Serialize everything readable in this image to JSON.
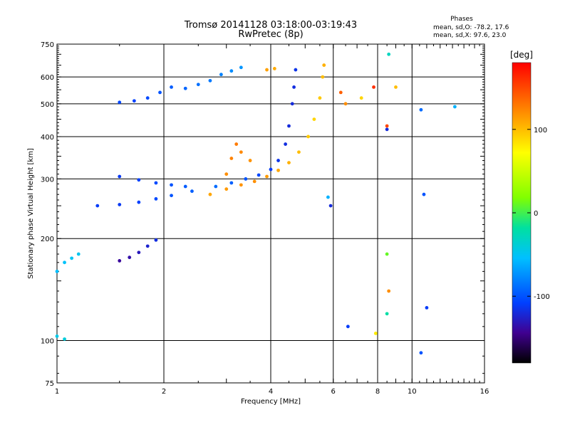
{
  "header": {
    "title_line1": "Tromsø 20141128 03:18:00-03:19:43",
    "title_line2": "RwPretec (8p)"
  },
  "phases_box": {
    "heading": "Phases",
    "line_o": "mean, sd,O: -78.2, 17.6",
    "line_x": "mean, sd,X:  97.6, 23.0"
  },
  "colorbar": {
    "label": "[deg]",
    "ticks": [
      "100",
      "0",
      "-100"
    ],
    "tick_values": [
      100,
      0,
      -100
    ],
    "range": [
      -180,
      180
    ]
  },
  "chart_data": {
    "type": "scatter",
    "xlabel": "Frequency [MHz]",
    "ylabel": "Stationary phase Virtual Height [km]",
    "x_scale": "log",
    "y_scale": "log",
    "xlim": [
      1,
      16
    ],
    "ylim": [
      75,
      750
    ],
    "x_ticks": [
      "1",
      "2",
      "4",
      "6",
      "8",
      "10",
      "16"
    ],
    "x_tick_values": [
      1,
      2,
      4,
      6,
      8,
      10,
      16
    ],
    "y_ticks": [
      "750",
      "600",
      "500",
      "400",
      "300",
      "200",
      "100",
      "75"
    ],
    "y_tick_values": [
      750,
      600,
      500,
      400,
      300,
      200,
      100,
      75
    ],
    "grid_x": [
      2,
      4,
      6,
      8,
      10
    ],
    "grid_y": [
      600,
      500,
      400,
      300,
      200,
      100
    ],
    "color_meaning": "phase (deg)",
    "traces": [
      {
        "name": "O-trace main",
        "points": [
          [
            1.3,
            250
          ],
          [
            1.5,
            252
          ],
          [
            1.7,
            256
          ],
          [
            1.9,
            262
          ],
          [
            2.1,
            268
          ],
          [
            2.4,
            276
          ],
          [
            2.8,
            285
          ],
          [
            3.1,
            292
          ],
          [
            3.4,
            300
          ],
          [
            3.7,
            308
          ],
          [
            4.0,
            320
          ],
          [
            4.2,
            340
          ],
          [
            4.4,
            380
          ],
          [
            4.5,
            430
          ],
          [
            4.6,
            500
          ],
          [
            4.65,
            560
          ],
          [
            4.7,
            630
          ]
        ],
        "phase": [
          -110,
          -112,
          -108,
          -104,
          -100,
          -95,
          -90,
          -95,
          -100,
          -105,
          -110,
          -115,
          -118,
          -120,
          -120,
          -118,
          -115
        ]
      },
      {
        "name": "X-trace main",
        "points": [
          [
            2.7,
            270
          ],
          [
            3.0,
            280
          ],
          [
            3.3,
            288
          ],
          [
            3.6,
            295
          ],
          [
            3.9,
            305
          ],
          [
            4.2,
            318
          ],
          [
            4.5,
            335
          ],
          [
            4.8,
            360
          ],
          [
            5.1,
            400
          ],
          [
            5.3,
            450
          ],
          [
            5.5,
            520
          ],
          [
            5.6,
            600
          ],
          [
            5.65,
            650
          ]
        ],
        "phase": [
          110,
          115,
          118,
          120,
          115,
          110,
          105,
          100,
          95,
          90,
          95,
          100,
          105
        ]
      },
      {
        "name": "O-trace upper band",
        "points": [
          [
            1.5,
            505
          ],
          [
            1.65,
            510
          ],
          [
            1.8,
            520
          ],
          [
            1.95,
            540
          ],
          [
            2.1,
            560
          ],
          [
            2.3,
            555
          ],
          [
            2.5,
            570
          ],
          [
            2.7,
            585
          ],
          [
            2.9,
            610
          ],
          [
            3.1,
            625
          ],
          [
            3.3,
            640
          ]
        ],
        "phase": [
          -105,
          -108,
          -104,
          -100,
          -96,
          -92,
          -88,
          -84,
          -80,
          -76,
          -72
        ]
      },
      {
        "name": "O-trace lower cusp",
        "points": [
          [
            1.5,
            172
          ],
          [
            1.6,
            176
          ],
          [
            1.7,
            182
          ],
          [
            1.8,
            190
          ],
          [
            1.9,
            198
          ]
        ],
        "phase": [
          -140,
          -136,
          -130,
          -124,
          -118
        ]
      },
      {
        "name": "multi-echo band",
        "points": [
          [
            1.5,
            305
          ],
          [
            1.7,
            298
          ],
          [
            1.9,
            292
          ],
          [
            2.1,
            288
          ],
          [
            2.3,
            285
          ]
        ],
        "phase": [
          -112,
          -108,
          -104,
          -100,
          -96
        ]
      },
      {
        "name": "oblique echoes",
        "points": [
          [
            3.0,
            310
          ],
          [
            3.1,
            345
          ],
          [
            3.2,
            380
          ],
          [
            3.3,
            360
          ],
          [
            3.5,
            340
          ],
          [
            3.9,
            630
          ],
          [
            4.1,
            635
          ]
        ],
        "phase": [
          120,
          125,
          128,
          122,
          118,
          112,
          108
        ]
      },
      {
        "name": "low-frequency echoes",
        "points": [
          [
            1.0,
            160
          ],
          [
            1.05,
            170
          ],
          [
            1.1,
            175
          ],
          [
            1.15,
            180
          ],
          [
            1.0,
            103
          ],
          [
            1.05,
            101
          ]
        ],
        "phase": [
          -55,
          -52,
          -50,
          -48,
          -45,
          -40
        ]
      },
      {
        "name": "sparse high-frequency echoes",
        "points": [
          [
            6.3,
            540
          ],
          [
            6.5,
            500
          ],
          [
            7.2,
            520
          ],
          [
            7.8,
            560
          ],
          [
            8.5,
            430
          ],
          [
            8.6,
            700
          ],
          [
            8.5,
            420
          ],
          [
            8.5,
            180
          ],
          [
            8.6,
            140
          ],
          [
            8.5,
            120
          ],
          [
            9.0,
            560
          ],
          [
            10.6,
            480
          ],
          [
            10.8,
            270
          ],
          [
            11.0,
            125
          ],
          [
            10.6,
            92
          ],
          [
            13.2,
            490
          ],
          [
            6.6,
            110
          ],
          [
            7.9,
            105
          ],
          [
            5.9,
            250
          ],
          [
            5.8,
            265
          ]
        ],
        "phase": [
          140,
          120,
          90,
          160,
          150,
          -30,
          -120,
          10,
          120,
          -20,
          100,
          -90,
          -100,
          -110,
          -100,
          -60,
          -110,
          80,
          -120,
          -60
        ]
      }
    ]
  }
}
